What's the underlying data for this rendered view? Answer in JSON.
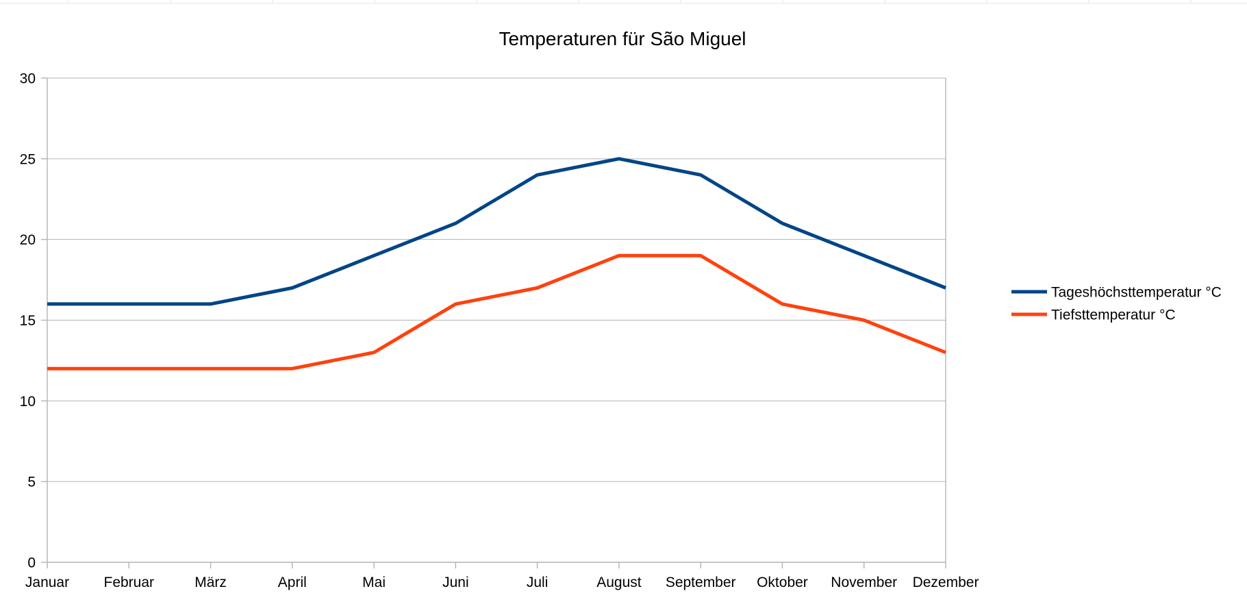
{
  "chart_data": {
    "type": "line",
    "title": "Temperaturen für São Miguel",
    "xlabel": "",
    "ylabel": "",
    "ylim": [
      0,
      30
    ],
    "ytick_step": 5,
    "yticks": [
      "0",
      "5",
      "10",
      "15",
      "20",
      "25",
      "30"
    ],
    "grid": true,
    "legend_position": "right",
    "categories": [
      "Januar",
      "Februar",
      "März",
      "April",
      "Mai",
      "Juni",
      "Juli",
      "August",
      "September",
      "Oktober",
      "November",
      "Dezember"
    ],
    "series": [
      {
        "name": "Tageshöchsttemperatur °C",
        "color": "#004586",
        "values": [
          16,
          16,
          16,
          17,
          19,
          21,
          24,
          25,
          24,
          21,
          19,
          17
        ]
      },
      {
        "name": "Tiefsttemperatur °C",
        "color": "#ff420e",
        "values": [
          12,
          12,
          12,
          12,
          13,
          16,
          17,
          19,
          19,
          16,
          15,
          13
        ]
      }
    ]
  }
}
